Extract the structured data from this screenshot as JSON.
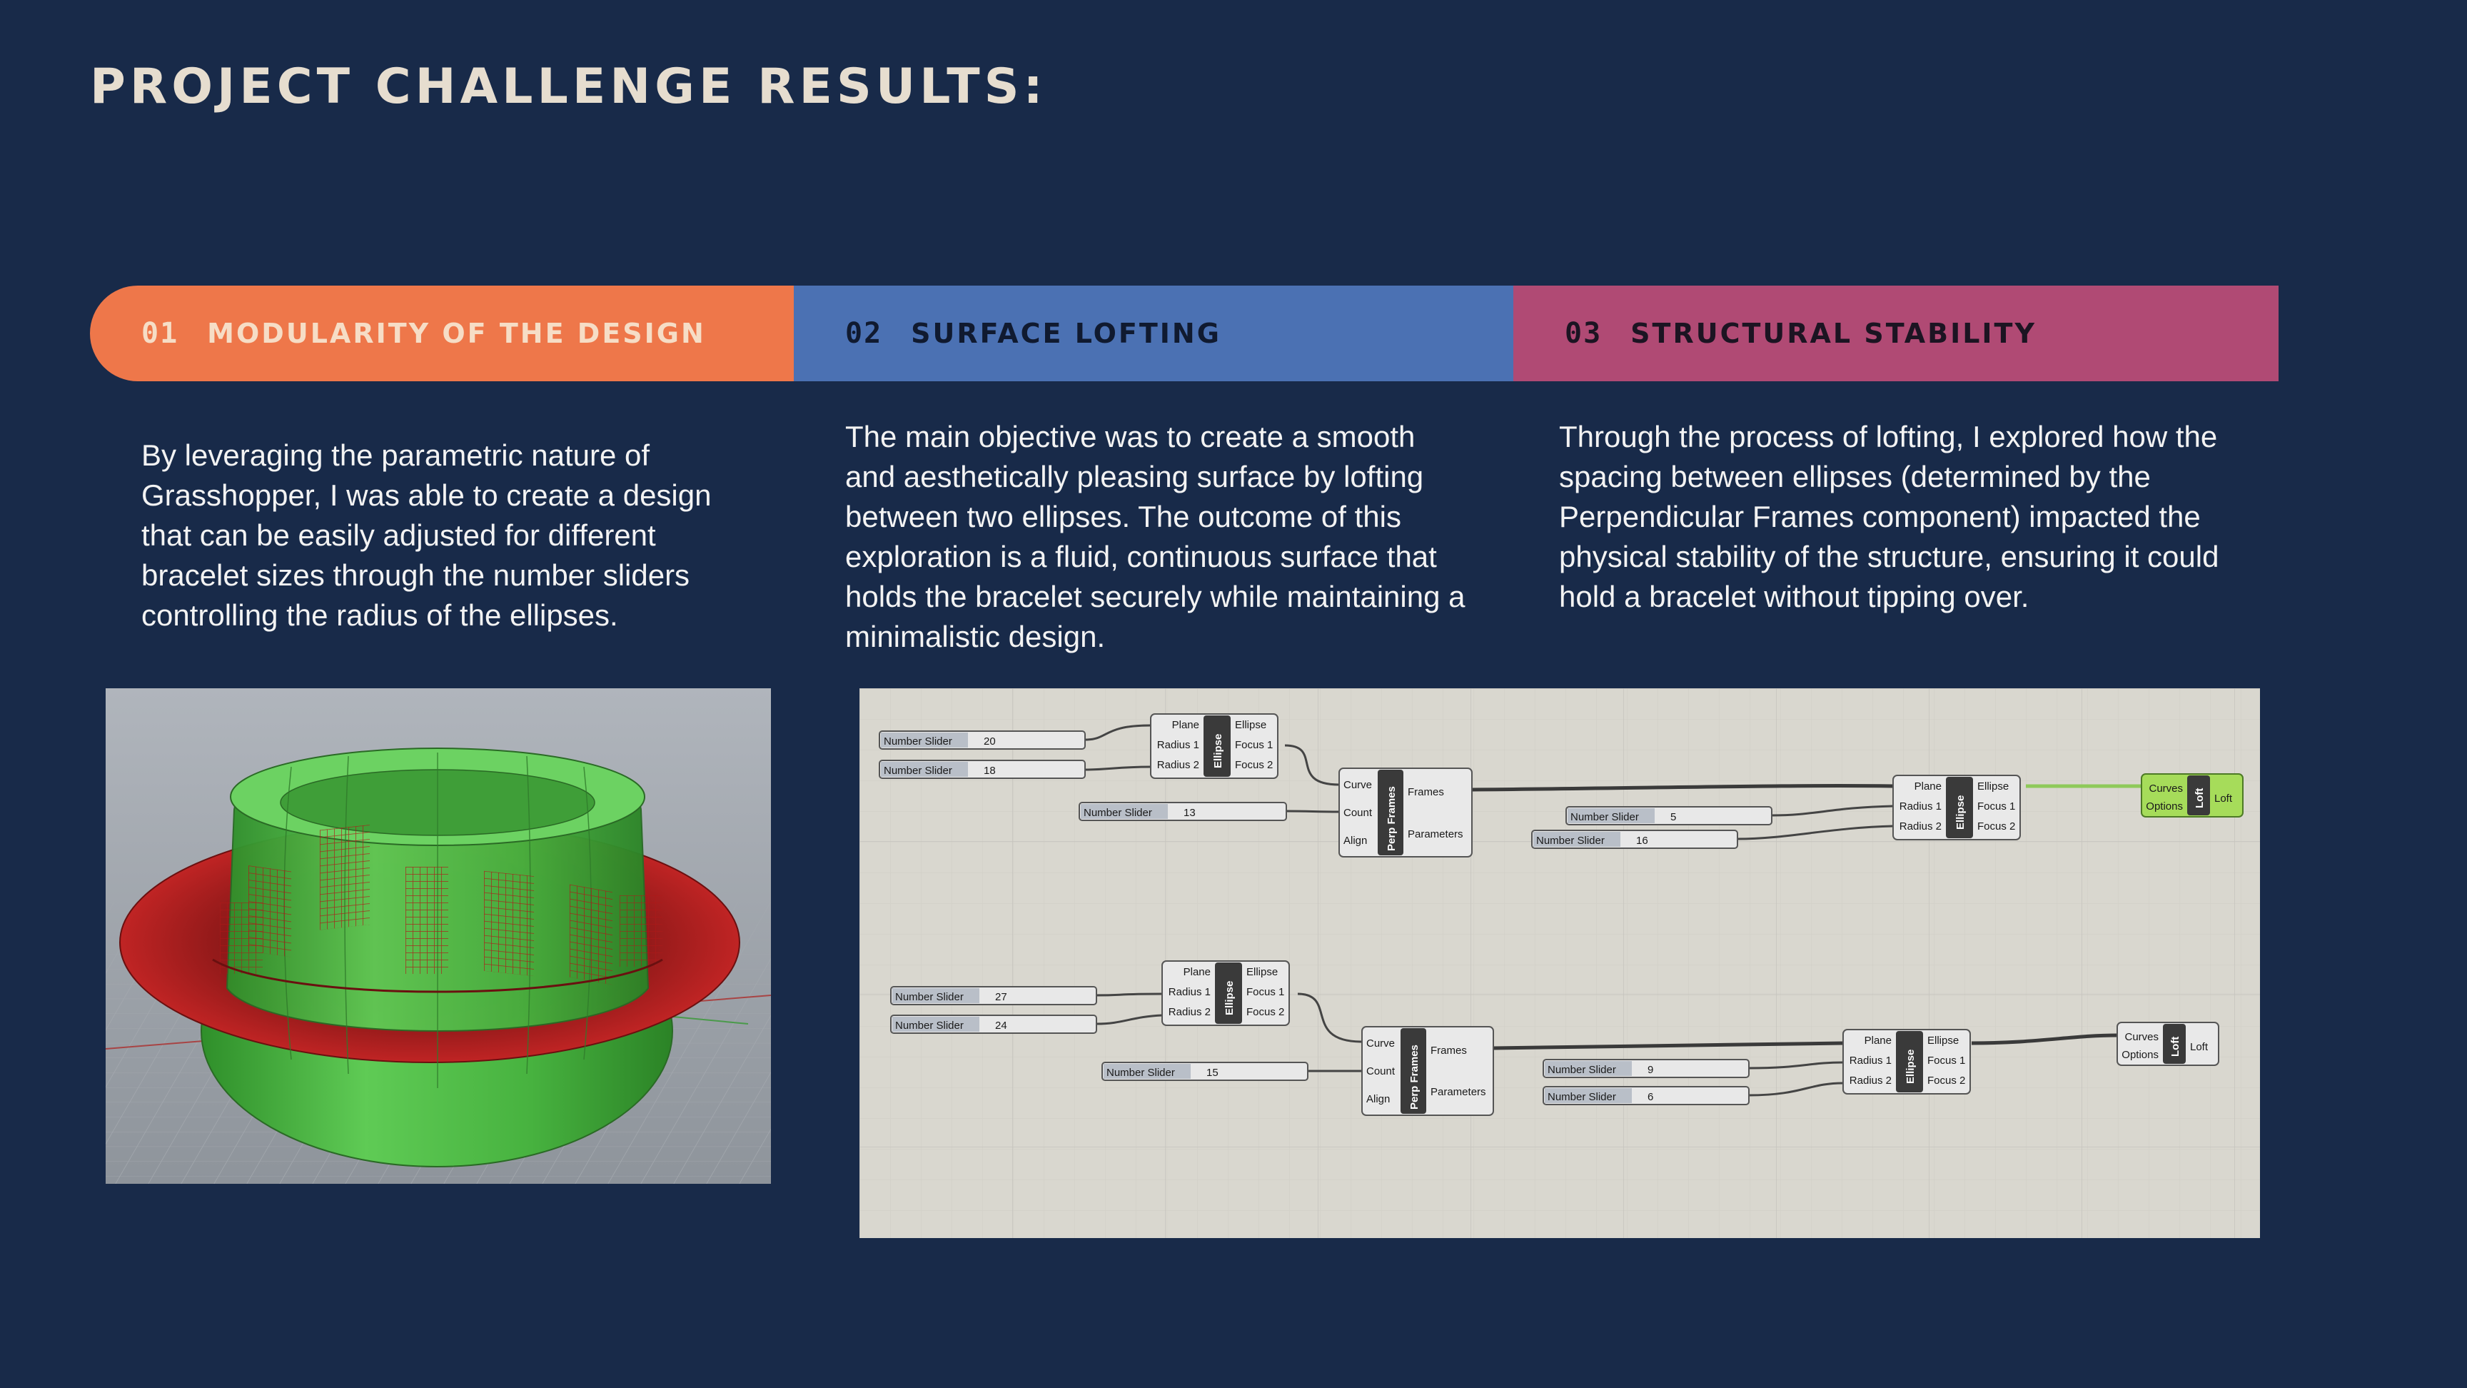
{
  "page": {
    "title": "PROJECT CHALLENGE RESULTS:"
  },
  "sections": [
    {
      "number": "01",
      "label": "MODULARITY OF THE DESIGN",
      "color": "#ee774a",
      "text": "By leveraging the parametric nature of Grasshopper, I was able to create a design that can be easily adjusted for different bracelet sizes through the number sliders controlling the radius of the ellipses."
    },
    {
      "number": "02",
      "label": "SURFACE LOFTING",
      "color": "#4b71b3",
      "text": "The main objective was to create a smooth and aesthetically pleasing surface by lofting between two ellipses. The outcome of this exploration is a fluid, continuous surface that holds the bracelet securely while maintaining a minimalistic design."
    },
    {
      "number": "03",
      "label": "STRUCTURAL STABILITY",
      "color": "#b04a74",
      "text": "Through the process of lofting, I explored how the spacing between ellipses (determined by the Perpendicular Frames component) impacted the physical stability of the structure, ensuring it could hold a bracelet without tipping over."
    }
  ],
  "colors": {
    "background": "#182a49",
    "title": "#e6ddcf",
    "body_text": "#f3f3f3",
    "viewport_bg": "#9aa0a8",
    "canvas_bg": "#d6d4cc",
    "shape_green": "#45b73d",
    "shape_red": "#b21e1e",
    "loft_active": "#a6dc5a"
  },
  "graph": {
    "slider_label": "Number Slider",
    "ellipse": {
      "name": "Ellipse",
      "inputs": [
        "Plane",
        "Radius 1",
        "Radius 2"
      ],
      "outputs": [
        "Ellipse",
        "Focus 1",
        "Focus 2"
      ]
    },
    "perp": {
      "name": "Perp Frames",
      "inputs": [
        "Curve",
        "Count",
        "Align"
      ],
      "outputs": [
        "Frames",
        "Parameters"
      ]
    },
    "loft": {
      "name": "Loft",
      "inputs": [
        "Curves",
        "Options"
      ],
      "outputs": [
        "Loft"
      ]
    },
    "top": {
      "r1a": "20",
      "r2a": "18",
      "count": "13",
      "r1b": "5",
      "r2b": "16"
    },
    "bottom": {
      "r1a": "27",
      "r2a": "24",
      "count": "15",
      "r1b": "9",
      "r2b": "6"
    }
  }
}
